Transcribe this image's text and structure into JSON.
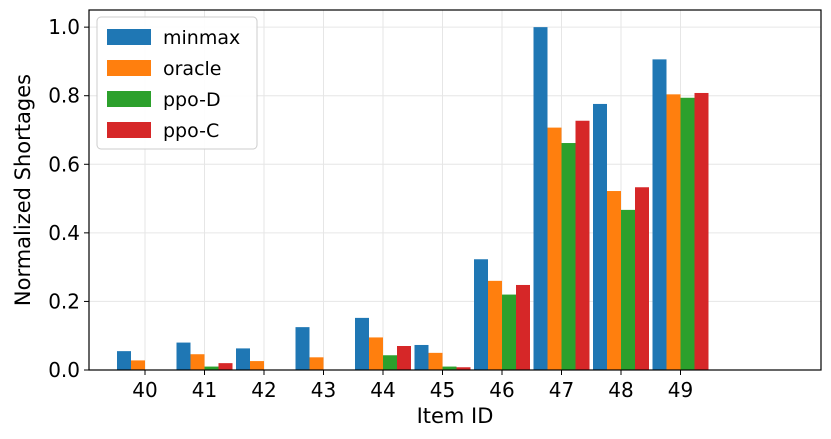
{
  "chart_data": {
    "type": "bar",
    "title": "",
    "xlabel": "Item ID",
    "ylabel": "Normalized Shortages",
    "categories": [
      "40",
      "41",
      "42",
      "43",
      "44",
      "45",
      "46",
      "47",
      "48",
      "49"
    ],
    "ylim": [
      0,
      1.05
    ],
    "yticks": [
      0.0,
      0.2,
      0.4,
      0.6,
      0.8,
      1.0
    ],
    "ytick_labels": [
      "0.0",
      "0.2",
      "0.4",
      "0.6",
      "0.8",
      "1.0"
    ],
    "grid": true,
    "legend_position": "top-left",
    "series": [
      {
        "name": "minmax",
        "color": "#1f77b4",
        "values": [
          0.055,
          0.08,
          0.063,
          0.125,
          0.152,
          0.073,
          0.323,
          1.0,
          0.776,
          0.906
        ]
      },
      {
        "name": "oracle",
        "color": "#ff7f0e",
        "values": [
          0.028,
          0.046,
          0.026,
          0.037,
          0.095,
          0.05,
          0.26,
          0.707,
          0.522,
          0.804
        ]
      },
      {
        "name": "ppo-D",
        "color": "#2ca02c",
        "values": [
          0.0,
          0.01,
          0.0,
          0.0,
          0.043,
          0.01,
          0.22,
          0.662,
          0.467,
          0.794
        ]
      },
      {
        "name": "ppo-C",
        "color": "#d62728",
        "values": [
          0.0,
          0.02,
          0.0,
          0.0,
          0.07,
          0.008,
          0.248,
          0.727,
          0.533,
          0.808
        ]
      }
    ]
  }
}
